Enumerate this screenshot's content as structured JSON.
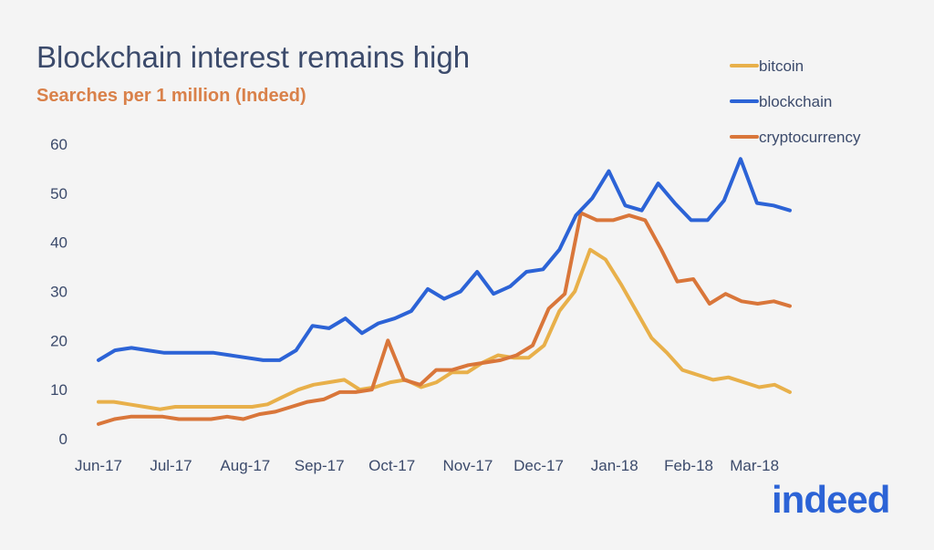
{
  "colors": {
    "bitcoin": "#e8b04a",
    "blockchain": "#2c63d6",
    "cryptocurrency": "#d9763a",
    "text": "#3b4a6b",
    "subtitle": "#d9814a",
    "background": "#f4f4f4"
  },
  "brand": {
    "name": "indeed"
  },
  "chart_data": {
    "type": "line",
    "title": "Blockchain interest remains high",
    "subtitle": "Searches per 1 million (Indeed)",
    "xlabel": "",
    "ylabel": "",
    "ylim": [
      0,
      60
    ],
    "yticks": [
      "0",
      "10",
      "20",
      "30",
      "40",
      "50",
      "60"
    ],
    "xticks": [
      "Jun-17",
      "Jul-17",
      "Aug-17",
      "Sep-17",
      "Oct-17",
      "Nov-17",
      "Dec-17",
      "Jan-18",
      "Feb-18",
      "Mar-18"
    ],
    "xtick_weeks": [
      0,
      4.3,
      8.7,
      13.1,
      17.4,
      21.9,
      26.1,
      30.6,
      35,
      38.9
    ],
    "grid": false,
    "legend_position": "top-right",
    "weeks_span": [
      0,
      41
    ],
    "series": [
      {
        "name": "bitcoin",
        "values": [
          7.5,
          7.5,
          7,
          6.5,
          6,
          6.5,
          6.5,
          6.5,
          6.5,
          6.5,
          6.5,
          7,
          8.5,
          10,
          11,
          11.5,
          12,
          10,
          10.5,
          11.5,
          12,
          10.5,
          11.5,
          13.5,
          13.5,
          15.5,
          17,
          16.5,
          16.5,
          19,
          26,
          30,
          38.5,
          36.5,
          31.5,
          26,
          20.5,
          17.5,
          14,
          13,
          12,
          12.5,
          11.5,
          10.5,
          11,
          9.5
        ]
      },
      {
        "name": "blockchain",
        "values": [
          16,
          18,
          18.5,
          18,
          17.5,
          17.5,
          17.5,
          17.5,
          17,
          16.5,
          16,
          16,
          18,
          23,
          22.5,
          24.5,
          21.5,
          23.5,
          24.5,
          26,
          30.5,
          28.5,
          30,
          34,
          29.5,
          31,
          34,
          34.5,
          38.5,
          45.5,
          49,
          54.5,
          47.5,
          46.5,
          52,
          48,
          44.5,
          44.5,
          48.5,
          57,
          48,
          47.5,
          46.5
        ]
      },
      {
        "name": "cryptocurrency",
        "values": [
          3,
          4,
          4.5,
          4.5,
          4.5,
          4,
          4,
          4,
          4.5,
          4,
          5,
          5.5,
          6.5,
          7.5,
          8,
          9.5,
          9.5,
          10,
          20,
          12,
          11,
          14,
          14,
          15,
          15.5,
          16,
          17,
          19,
          26.5,
          29.5,
          46,
          44.5,
          44.5,
          45.5,
          44.5,
          38.5,
          32,
          32.5,
          27.5,
          29.5,
          28,
          27.5,
          28,
          27
        ]
      }
    ]
  }
}
